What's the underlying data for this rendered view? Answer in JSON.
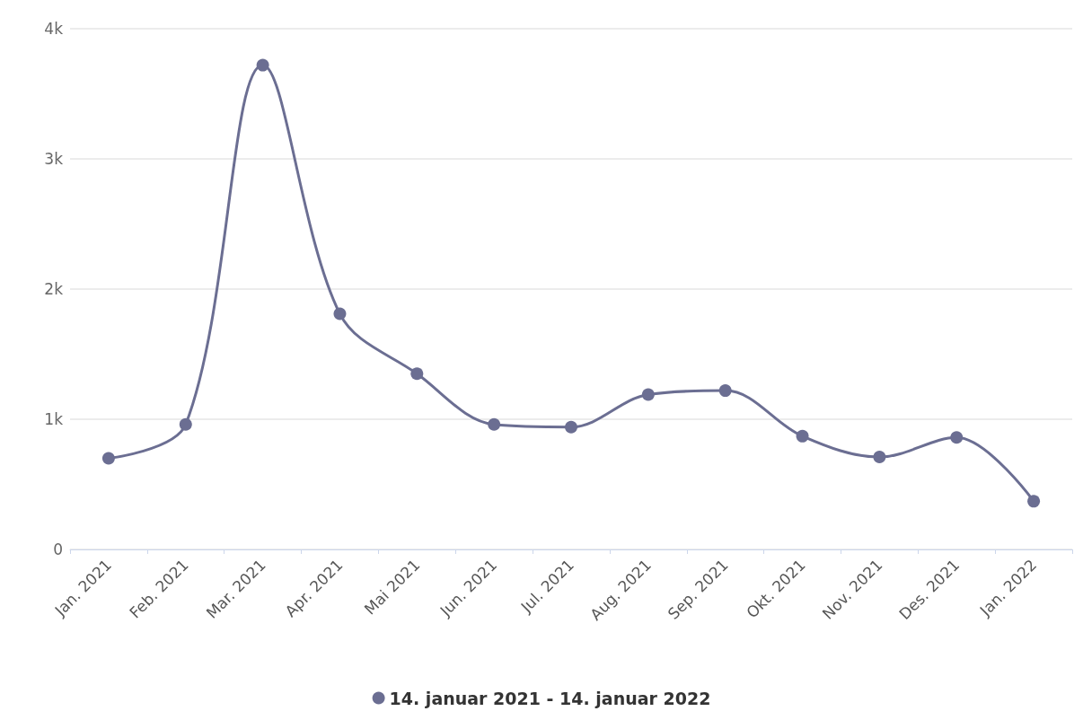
{
  "chart_data": {
    "type": "line",
    "categories": [
      "Jan. 2021",
      "Feb. 2021",
      "Mar. 2021",
      "Apr. 2021",
      "Mai 2021",
      "Jun. 2021",
      "Jul. 2021",
      "Aug. 2021",
      "Sep. 2021",
      "Okt. 2021",
      "Nov. 2021",
      "Des. 2021",
      "Jan. 2022"
    ],
    "series": [
      {
        "name": "14. januar 2021 - 14. januar 2022",
        "color": "#6b6e92",
        "values": [
          700,
          960,
          3720,
          1810,
          1350,
          960,
          940,
          1190,
          1220,
          870,
          710,
          860,
          370
        ]
      }
    ],
    "ylim": [
      0,
      4000
    ],
    "yticks": [
      0,
      {
        "value": 1000,
        "label": "1k"
      },
      {
        "value": 2000,
        "label": "2k"
      },
      {
        "value": 3000,
        "label": "3k"
      },
      {
        "value": 4000,
        "label": "4k"
      }
    ],
    "grid": "y",
    "legend": "bottom",
    "marker": "circle",
    "line_style": "solid"
  }
}
